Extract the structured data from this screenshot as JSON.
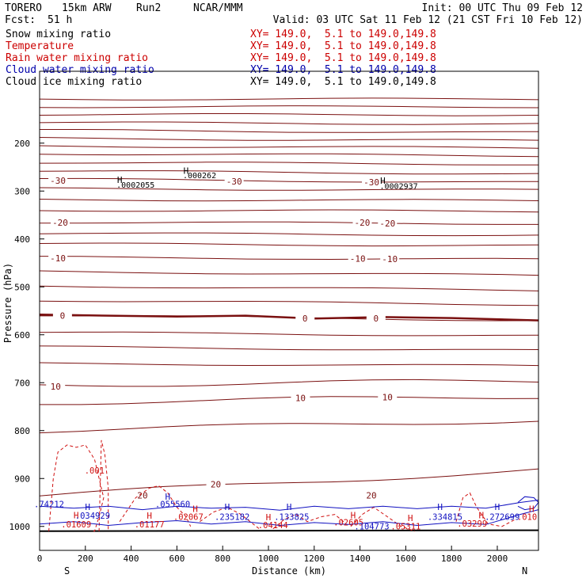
{
  "header": {
    "model": "TORERO",
    "resolution": "15km ARW",
    "run": "Run2",
    "center": "NCAR/MMM",
    "init": "Init: 00 UTC Thu 09 Feb 12",
    "fcst_label": "Fcst:",
    "fcst_value": "51 h",
    "valid": "Valid: 03 UTC Sat 11 Feb 12 (21 CST Fri 10 Feb 12)"
  },
  "fields": [
    {
      "name": "Snow mixing ratio",
      "xy": "XY= 149.0,  5.1 to 149.0,149.8",
      "color": "#000000"
    },
    {
      "name": "Temperature",
      "xy": "XY= 149.0,  5.1 to 149.0,149.8",
      "color": "#cc0000"
    },
    {
      "name": "Rain water mixing ratio",
      "xy": "XY= 149.0,  5.1 to 149.0,149.8",
      "color": "#cc0000"
    },
    {
      "name": "Cloud water mixing ratio",
      "xy": "XY= 149.0,  5.1 to 149.0,149.8",
      "color": "#0000aa"
    },
    {
      "name": "Cloud ice mixing ratio",
      "xy": "XY= 149.0,  5.1 to 149.0,149.8",
      "color": "#000000"
    }
  ],
  "colors": {
    "temperature": "#7a1010",
    "freezing": "#7a1010",
    "rain": "#d01010",
    "cloud_water": "#1010c0",
    "ice": "#000000",
    "axis": "#000000"
  },
  "chart_data": {
    "type": "line",
    "xlabel": "Distance (km)",
    "ylabel": "Pressure (hPa)",
    "xlim": [
      0,
      2180
    ],
    "ylim": [
      1050,
      50
    ],
    "x_ticks": [
      0,
      200,
      400,
      600,
      800,
      1000,
      1200,
      1400,
      1600,
      1800,
      2000
    ],
    "y_ticks": [
      200,
      300,
      400,
      500,
      600,
      700,
      800,
      900,
      1000
    ],
    "y_tick_labels": [
      "200",
      "300",
      "400",
      "500",
      "600",
      "700",
      "800",
      "900",
      "1000"
    ],
    "x_end_labels": {
      "left": "S",
      "right": "N"
    },
    "temperature_isotherms": [
      {
        "label": "",
        "p": [
          108,
          108
        ]
      },
      {
        "label": "",
        "p": [
          124,
          124
        ]
      },
      {
        "label": "",
        "p": [
          140,
          141
        ]
      },
      {
        "label": "",
        "p": [
          157,
          160
        ]
      },
      {
        "label": "",
        "p": [
          173,
          178
        ]
      },
      {
        "label": "",
        "p": [
          190,
          195
        ]
      },
      {
        "label": "",
        "p": [
          206,
          210
        ]
      },
      {
        "label": "",
        "p": [
          222,
          226
        ]
      },
      {
        "label": "",
        "p": [
          240,
          244
        ]
      },
      {
        "label": "",
        "p": [
          258,
          264
        ]
      },
      {
        "label": "-30",
        "p": [
          275,
          282
        ]
      },
      {
        "label": "",
        "p": [
          295,
          298
        ]
      },
      {
        "label": "",
        "p": [
          318,
          320
        ]
      },
      {
        "label": "",
        "p": [
          340,
          342
        ]
      },
      {
        "label": "-20",
        "p": [
          365,
          368
        ]
      },
      {
        "label": "",
        "p": [
          388,
          392
        ]
      },
      {
        "label": "",
        "p": [
          410,
          414
        ]
      },
      {
        "label": "-10",
        "p": [
          438,
          443
        ]
      },
      {
        "label": "",
        "p": [
          468,
          476
        ]
      },
      {
        "label": "",
        "p": [
          498,
          507
        ]
      },
      {
        "label": "",
        "p": [
          528,
          537
        ]
      },
      {
        "label": "0",
        "p": [
          559,
          570
        ]
      },
      {
        "label": "",
        "p": [
          595,
          602
        ]
      },
      {
        "label": "",
        "p": [
          625,
          633
        ]
      },
      {
        "label": "",
        "p": [
          660,
          665
        ]
      },
      {
        "label": "10",
        "p": [
          705,
          696
        ]
      },
      {
        "label": "",
        "p": [
          742,
          728
        ]
      },
      {
        "label": "",
        "p": [
          800,
          778
        ]
      },
      {
        "label": "20",
        "p": [
          935,
          882
        ]
      }
    ],
    "isotherm_labels": [
      {
        "text": "-30",
        "x": 80,
        "p": 278
      },
      {
        "text": "-30",
        "x": 850,
        "p": 280
      },
      {
        "text": "-30",
        "x": 1450,
        "p": 281
      },
      {
        "text": "-20",
        "x": 90,
        "p": 366
      },
      {
        "text": "-20",
        "x": 1410,
        "p": 366
      },
      {
        "text": "-20",
        "x": 1520,
        "p": 367
      },
      {
        "text": "-10",
        "x": 80,
        "p": 440
      },
      {
        "text": "-10",
        "x": 1390,
        "p": 441
      },
      {
        "text": "-10",
        "x": 1530,
        "p": 442
      },
      {
        "text": "0",
        "x": 100,
        "p": 560
      },
      {
        "text": "0",
        "x": 1160,
        "p": 566
      },
      {
        "text": "0",
        "x": 1470,
        "p": 566
      },
      {
        "text": "10",
        "x": 70,
        "p": 708
      },
      {
        "text": "10",
        "x": 1140,
        "p": 732
      },
      {
        "text": "10",
        "x": 1520,
        "p": 730
      },
      {
        "text": "20",
        "x": 450,
        "p": 935
      },
      {
        "text": "20",
        "x": 770,
        "p": 912
      },
      {
        "text": "20",
        "x": 1450,
        "p": 935
      }
    ],
    "freezing_level": {
      "x": [
        0,
        300,
        600,
        900,
        1200,
        1500,
        1800,
        2180
      ],
      "p": [
        558,
        560,
        562,
        560,
        566,
        563,
        565,
        570
      ]
    },
    "snow_maxima": [
      {
        "text": ".0002055",
        "x": 350,
        "p": 290
      },
      {
        "text": ".000262",
        "x": 640,
        "p": 270
      },
      {
        "text": ".0002937",
        "x": 1500,
        "p": 292
      }
    ],
    "rain_labels": [
      {
        "text": ".001",
        "x": 240,
        "p": 890
      },
      {
        "text": ".01609",
        "x": 160,
        "p": 1002
      },
      {
        "text": ".01177",
        "x": 480,
        "p": 1002
      },
      {
        "text": ".02067",
        "x": 650,
        "p": 986
      },
      {
        "text": ".04144",
        "x": 1020,
        "p": 1004
      },
      {
        "text": ".02605",
        "x": 1350,
        "p": 998
      },
      {
        "text": ".05311",
        "x": 1600,
        "p": 1006
      },
      {
        "text": ".03299",
        "x": 1890,
        "p": 1000
      },
      {
        "text": ".010",
        "x": 2130,
        "p": 986
      }
    ],
    "cloud_water_labels": [
      {
        "text": ".74212",
        "x": 0,
        "p": 960
      },
      {
        "text": ".034929",
        "x": 190,
        "p": 984
      },
      {
        "text": ".055560",
        "x": 540,
        "p": 960
      },
      {
        "text": ".235182",
        "x": 800,
        "p": 986
      },
      {
        "text": ".133825",
        "x": 1060,
        "p": 986
      },
      {
        "text": ".104773",
        "x": 1410,
        "p": 1006
      },
      {
        "text": ".334815",
        "x": 1730,
        "p": 986
      },
      {
        "text": ".272699",
        "x": 1980,
        "p": 986
      }
    ],
    "h_markers": [
      {
        "color": "ice",
        "x": 350,
        "p": 283
      },
      {
        "color": "ice",
        "x": 640,
        "p": 264
      },
      {
        "color": "ice",
        "x": 1500,
        "p": 285
      },
      {
        "color": "rain",
        "x": 160,
        "p": 983
      },
      {
        "color": "rain",
        "x": 480,
        "p": 984
      },
      {
        "color": "rain",
        "x": 680,
        "p": 970
      },
      {
        "color": "rain",
        "x": 1000,
        "p": 987
      },
      {
        "color": "rain",
        "x": 1370,
        "p": 983
      },
      {
        "color": "rain",
        "x": 1620,
        "p": 989
      },
      {
        "color": "rain",
        "x": 1930,
        "p": 983
      },
      {
        "color": "rain",
        "x": 2150,
        "p": 970
      },
      {
        "color": "cloud_water",
        "x": 210,
        "p": 966
      },
      {
        "color": "cloud_water",
        "x": 560,
        "p": 944
      },
      {
        "color": "cloud_water",
        "x": 820,
        "p": 966
      },
      {
        "color": "cloud_water",
        "x": 1090,
        "p": 966
      },
      {
        "color": "cloud_water",
        "x": 1750,
        "p": 966
      },
      {
        "color": "cloud_water",
        "x": 2000,
        "p": 966
      }
    ],
    "rain_contours": [
      {
        "x": [
          40,
          60,
          80,
          120,
          160,
          200,
          240,
          280,
          260,
          240,
          230
        ],
        "p": [
          1010,
          900,
          845,
          830,
          835,
          830,
          860,
          940,
          980,
          1010,
          1010
        ]
      },
      {
        "x": [
          260,
          270,
          285,
          300,
          300
        ],
        "p": [
          1010,
          820,
          850,
          920,
          1010
        ]
      },
      {
        "x": [
          350,
          420,
          480,
          520,
          560,
          600,
          640,
          660
        ],
        "p": [
          990,
          940,
          920,
          915,
          930,
          960,
          980,
          1000
        ]
      },
      {
        "x": [
          700,
          760,
          820,
          880,
          920,
          960
        ],
        "p": [
          990,
          970,
          960,
          975,
          990,
          1005
        ]
      },
      {
        "x": [
          1020,
          1070,
          1120,
          1170,
          1230,
          1290,
          1340
        ],
        "p": [
          1005,
          985,
          975,
          990,
          980,
          975,
          995
        ]
      },
      {
        "x": [
          1360,
          1410,
          1460,
          1520,
          1580,
          1640
        ],
        "p": [
          1000,
          975,
          960,
          980,
          1000,
          1010
        ]
      },
      {
        "x": [
          1820,
          1850,
          1880,
          1910,
          1960,
          2020,
          2080
        ],
        "p": [
          990,
          940,
          930,
          960,
          995,
          1000,
          985
        ]
      }
    ],
    "cloud_water_contours": [
      {
        "x": [
          0,
          150,
          300,
          450,
          600,
          750,
          900,
          1050,
          1200,
          1350,
          1500,
          1650,
          1800,
          1950,
          2100,
          2180
        ],
        "p": [
          958,
          962,
          958,
          965,
          958,
          962,
          960,
          966,
          958,
          963,
          958,
          963,
          958,
          962,
          950,
          945
        ]
      },
      {
        "x": [
          0,
          150,
          300,
          450,
          600,
          750,
          900,
          1050,
          1200,
          1350,
          1500,
          1650,
          1800,
          1950,
          2100,
          2180
        ],
        "p": [
          995,
          990,
          998,
          992,
          988,
          995,
          990,
          998,
          992,
          996,
          990,
          998,
          992,
          996,
          975,
          965
        ]
      },
      {
        "x": [
          2090,
          2120,
          2160,
          2180,
          2160,
          2120,
          2090
        ],
        "p": [
          950,
          938,
          940,
          950,
          962,
          965,
          958
        ]
      }
    ],
    "ground_level": {
      "x": [
        0,
        2180
      ],
      "p": [
        1010,
        1008
      ]
    }
  }
}
